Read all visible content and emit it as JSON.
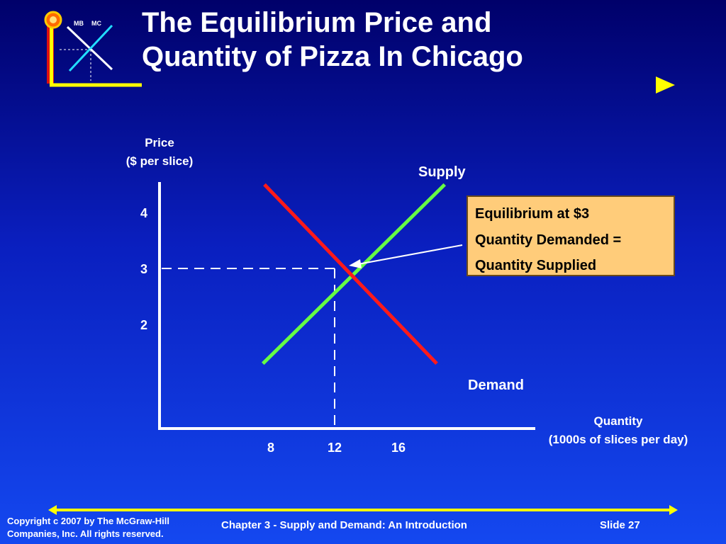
{
  "slide": {
    "title_line1": "The Equilibrium Price and",
    "title_line2": "Quantity of Pizza In Chicago",
    "logo": {
      "mb_label": "MB",
      "mc_label": "MC"
    },
    "callout": {
      "line1": "Equilibrium at $3",
      "line2": "Quantity Demanded =",
      "line3": "Quantity Supplied"
    },
    "footer": {
      "copyright_line1": "Copyright c 2007 by The McGraw-Hill",
      "copyright_line2": "Companies, Inc.  All rights reserved.",
      "chapter": "Chapter 3 - Supply and Demand:  An Introduction",
      "slide_number": "Slide 27"
    },
    "colors": {
      "accent_yellow": "#ffff00",
      "logo_orange": "#ff6a00",
      "supply": "#66ff44",
      "demand": "#ff1a1a",
      "callout_bg": "#ffcc7a"
    }
  },
  "chart_data": {
    "type": "line",
    "ylabel_line1": "Price",
    "ylabel_line2": "($ per slice)",
    "xlabel_line1": "Quantity",
    "xlabel_line2": "(1000s of slices per day)",
    "x_ticks": [
      8,
      12,
      16
    ],
    "y_ticks": [
      2,
      3,
      4
    ],
    "series": [
      {
        "name": "Supply",
        "points": [
          [
            7.5,
            1.3
          ],
          [
            18.9,
            4.5
          ]
        ],
        "color": "#66ff44"
      },
      {
        "name": "Demand",
        "points": [
          [
            7.6,
            4.5
          ],
          [
            18.4,
            1.3
          ]
        ],
        "color": "#ff1a1a"
      }
    ],
    "equilibrium": {
      "x": 12,
      "y": 3
    }
  }
}
